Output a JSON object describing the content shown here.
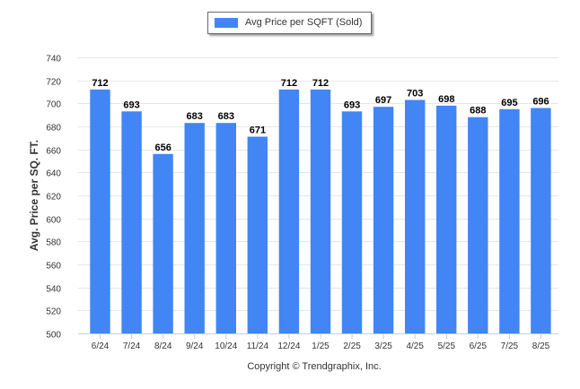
{
  "chart_data": {
    "type": "bar",
    "categories": [
      "6/24",
      "7/24",
      "8/24",
      "9/24",
      "10/24",
      "11/24",
      "12/24",
      "1/25",
      "2/25",
      "3/25",
      "4/25",
      "5/25",
      "6/25",
      "7/25",
      "8/25"
    ],
    "series": [
      {
        "name": "Avg Price per SQFT (Sold)",
        "values": [
          712,
          693,
          656,
          683,
          683,
          671,
          712,
          712,
          693,
          697,
          703,
          698,
          688,
          695,
          696
        ]
      }
    ],
    "title": "",
    "xlabel": "",
    "ylabel": "Avg. Price per SQ. FT.",
    "ylim": [
      500,
      740
    ],
    "yticks": [
      500,
      520,
      540,
      560,
      580,
      600,
      620,
      640,
      660,
      680,
      700,
      720,
      740
    ],
    "data_labels": true,
    "grid": true,
    "legend_position": "top-center",
    "bar_color": "#4285f4"
  },
  "footer": {
    "copyright": "Copyright © Trendgraphix, Inc."
  }
}
